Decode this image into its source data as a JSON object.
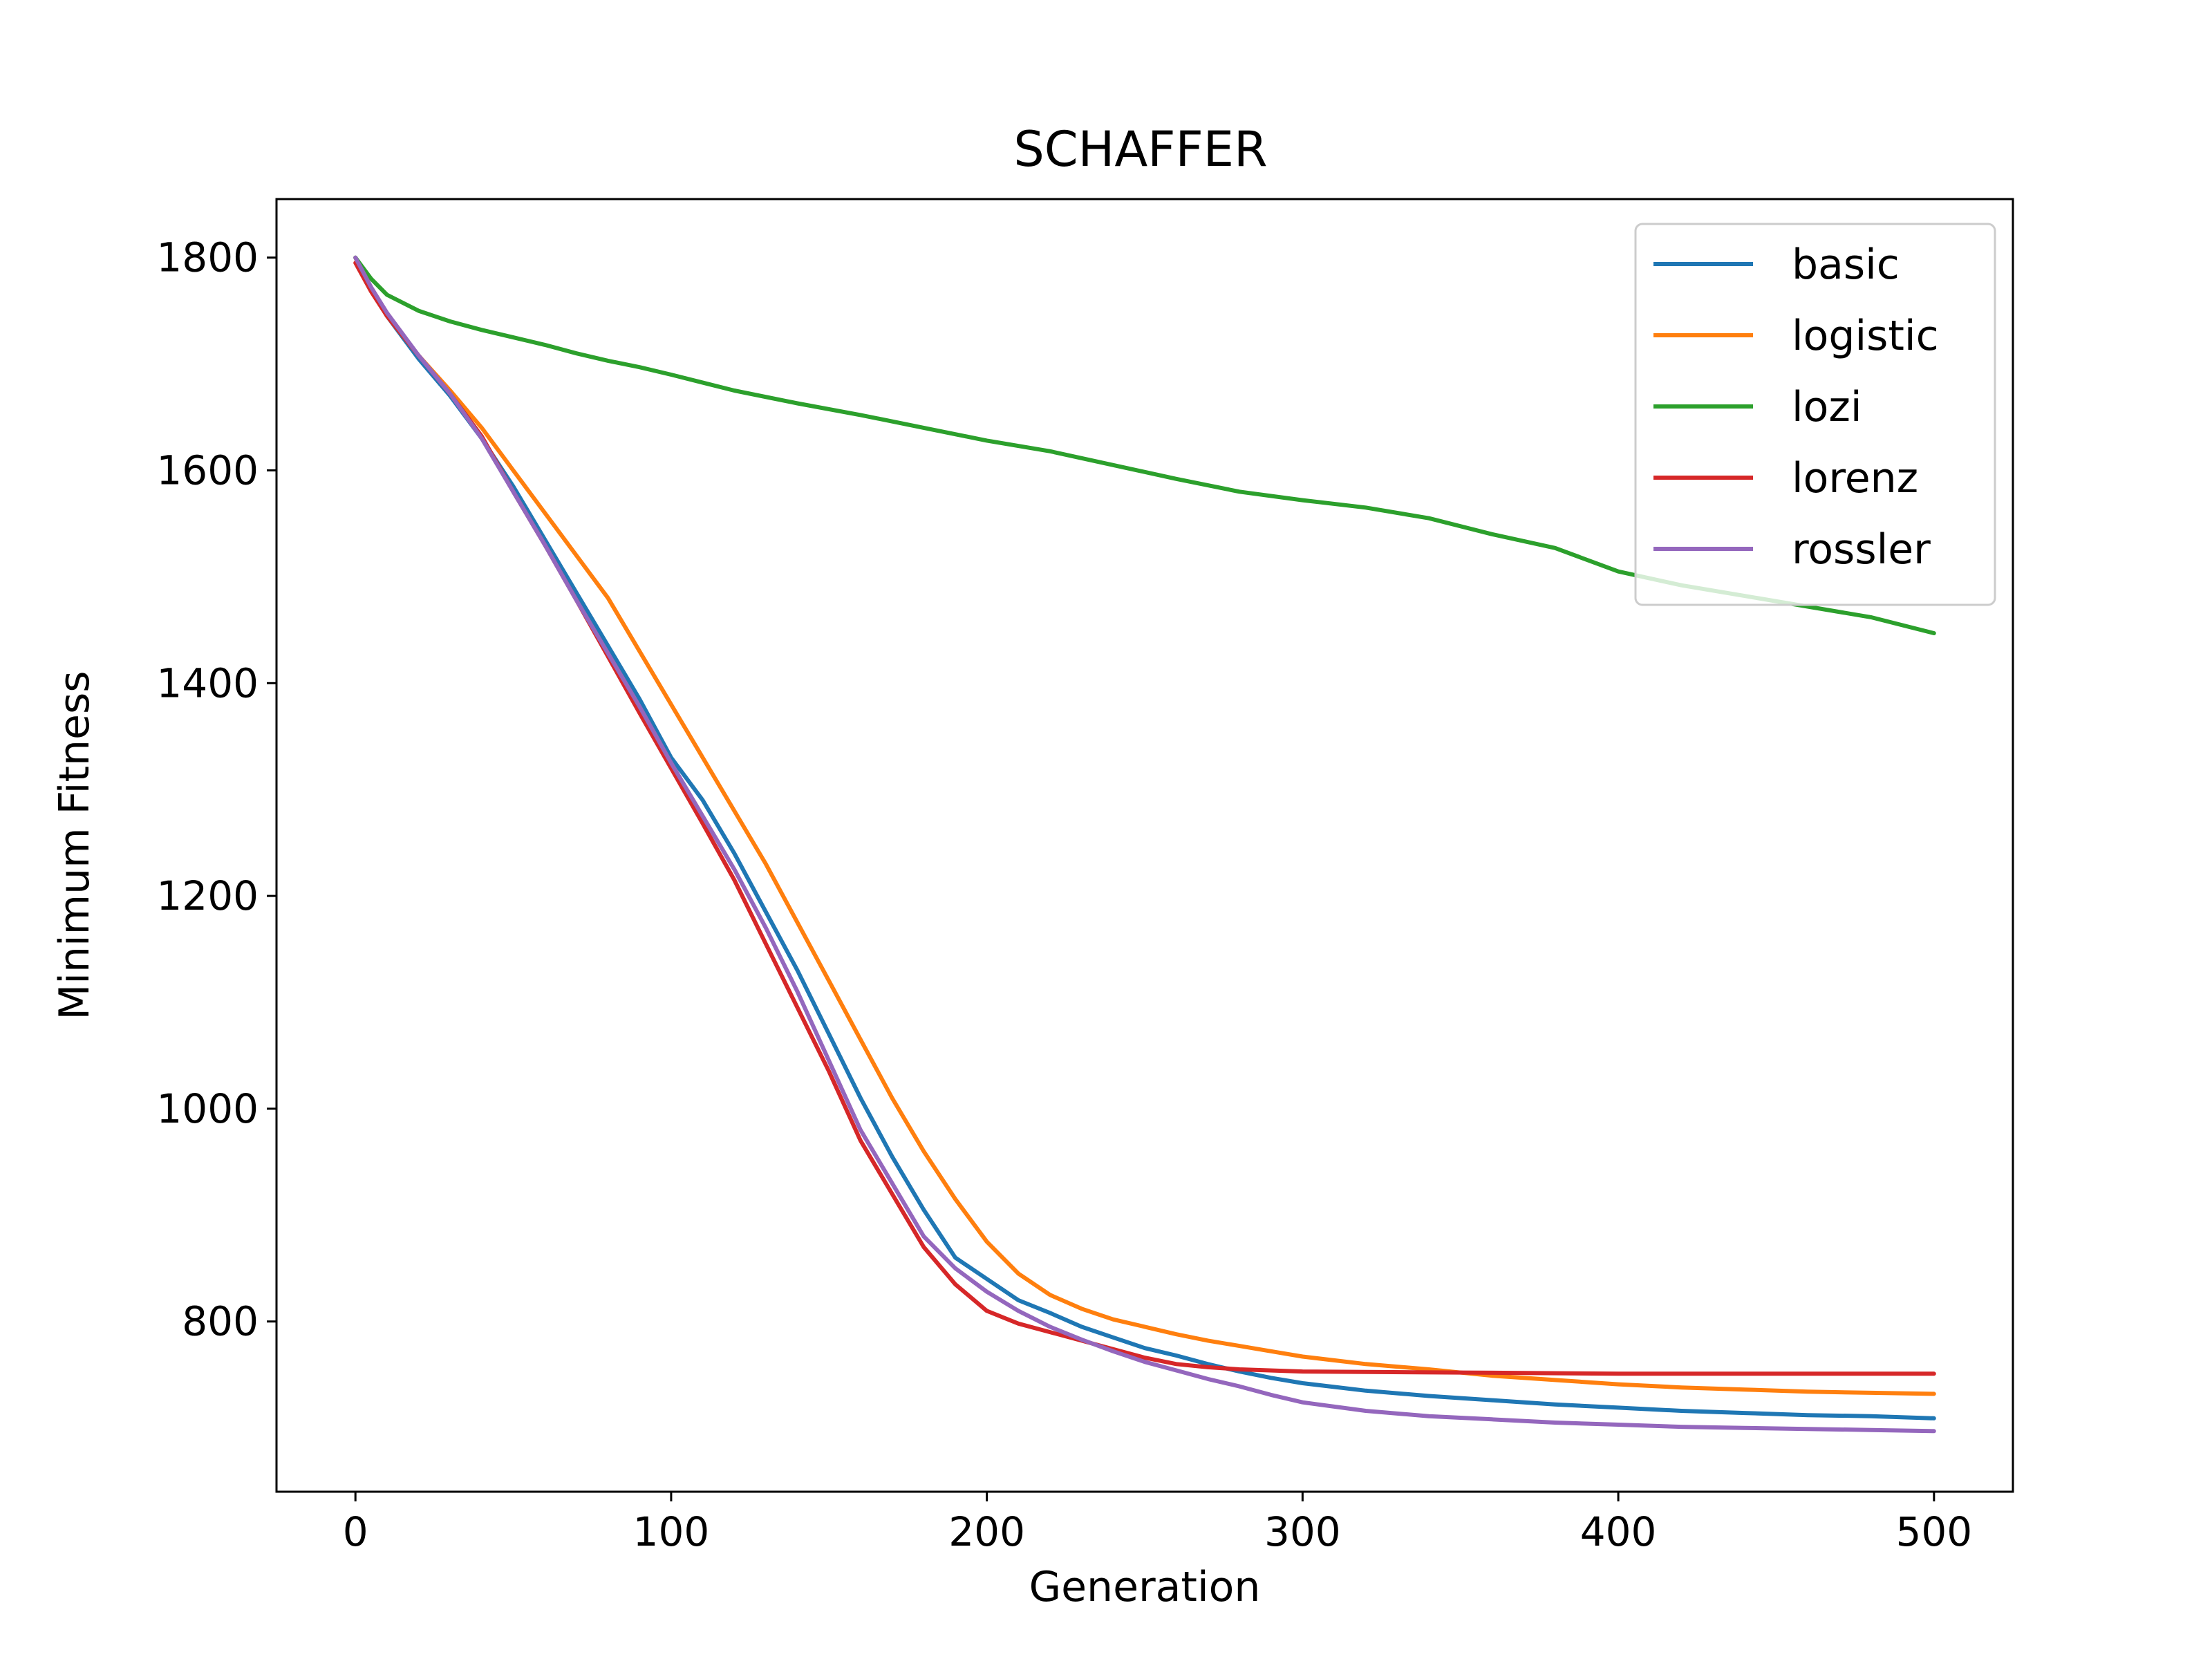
{
  "chart_data": {
    "type": "line",
    "title": "SCHAFFER",
    "xlabel": "Generation",
    "ylabel": "Minimum Fitness",
    "xlim": [
      -25,
      525
    ],
    "ylim": [
      640,
      1855
    ],
    "xticks": [
      0,
      100,
      200,
      300,
      400,
      500
    ],
    "yticks": [
      800,
      1000,
      1200,
      1400,
      1600,
      1800
    ],
    "grid": false,
    "legend": "top-right",
    "series": [
      {
        "name": "basic",
        "color": "#1f77b4",
        "x": [
          0,
          5,
          10,
          20,
          30,
          40,
          50,
          60,
          70,
          80,
          90,
          100,
          110,
          120,
          130,
          140,
          150,
          160,
          170,
          180,
          190,
          200,
          210,
          220,
          230,
          240,
          250,
          260,
          270,
          280,
          290,
          300,
          320,
          340,
          360,
          380,
          400,
          420,
          440,
          460,
          480,
          500
        ],
        "y": [
          1800,
          1770,
          1745,
          1705,
          1670,
          1630,
          1585,
          1535,
          1485,
          1435,
          1385,
          1330,
          1290,
          1240,
          1185,
          1130,
          1070,
          1010,
          955,
          905,
          860,
          840,
          820,
          808,
          795,
          785,
          775,
          768,
          760,
          753,
          747,
          742,
          735,
          730,
          726,
          722,
          719,
          716,
          714,
          712,
          711,
          709
        ]
      },
      {
        "name": "logistic",
        "color": "#ff7f0e",
        "x": [
          0,
          5,
          10,
          20,
          30,
          40,
          50,
          60,
          70,
          80,
          90,
          100,
          110,
          120,
          130,
          140,
          150,
          160,
          170,
          180,
          190,
          200,
          210,
          220,
          230,
          240,
          250,
          260,
          270,
          280,
          290,
          300,
          320,
          340,
          360,
          380,
          400,
          420,
          440,
          460,
          480,
          500
        ],
        "y": [
          1800,
          1770,
          1745,
          1708,
          1675,
          1640,
          1600,
          1560,
          1520,
          1480,
          1430,
          1380,
          1330,
          1280,
          1230,
          1175,
          1120,
          1065,
          1010,
          960,
          915,
          875,
          845,
          825,
          812,
          802,
          795,
          788,
          782,
          777,
          772,
          767,
          760,
          755,
          749,
          745,
          741,
          738,
          736,
          734,
          733,
          732
        ]
      },
      {
        "name": "lozi",
        "color": "#2ca02c",
        "x": [
          0,
          5,
          10,
          20,
          30,
          40,
          50,
          60,
          70,
          80,
          90,
          100,
          120,
          140,
          160,
          180,
          200,
          220,
          240,
          260,
          280,
          300,
          320,
          340,
          360,
          380,
          400,
          420,
          440,
          460,
          480,
          500
        ],
        "y": [
          1800,
          1780,
          1765,
          1750,
          1740,
          1732,
          1725,
          1718,
          1710,
          1703,
          1697,
          1690,
          1675,
          1663,
          1652,
          1640,
          1628,
          1618,
          1605,
          1592,
          1580,
          1572,
          1565,
          1555,
          1540,
          1527,
          1505,
          1492,
          1482,
          1472,
          1462,
          1447
        ]
      },
      {
        "name": "lorenz",
        "color": "#d62728",
        "x": [
          0,
          5,
          10,
          20,
          30,
          40,
          50,
          60,
          70,
          80,
          90,
          100,
          110,
          120,
          130,
          140,
          150,
          160,
          170,
          180,
          190,
          200,
          210,
          220,
          230,
          240,
          250,
          260,
          270,
          280,
          300,
          350,
          400,
          450,
          500
        ],
        "y": [
          1795,
          1768,
          1745,
          1708,
          1672,
          1632,
          1580,
          1530,
          1478,
          1425,
          1372,
          1320,
          1268,
          1215,
          1155,
          1095,
          1035,
          970,
          920,
          870,
          835,
          810,
          798,
          790,
          782,
          774,
          766,
          760,
          757,
          755,
          753,
          752,
          751,
          751,
          751
        ]
      },
      {
        "name": "rossler",
        "color": "#9467bd",
        "x": [
          0,
          5,
          10,
          20,
          30,
          40,
          50,
          60,
          70,
          80,
          90,
          100,
          110,
          120,
          130,
          140,
          150,
          160,
          170,
          180,
          190,
          200,
          210,
          220,
          230,
          240,
          250,
          260,
          270,
          280,
          290,
          300,
          320,
          340,
          360,
          380,
          400,
          420,
          440,
          460,
          480,
          500
        ],
        "y": [
          1800,
          1772,
          1748,
          1708,
          1672,
          1630,
          1580,
          1530,
          1478,
          1428,
          1378,
          1325,
          1275,
          1225,
          1170,
          1110,
          1045,
          980,
          930,
          880,
          850,
          828,
          810,
          795,
          783,
          772,
          762,
          754,
          746,
          739,
          731,
          724,
          716,
          711,
          708,
          705,
          703,
          701,
          700,
          699,
          698,
          697
        ]
      }
    ]
  }
}
